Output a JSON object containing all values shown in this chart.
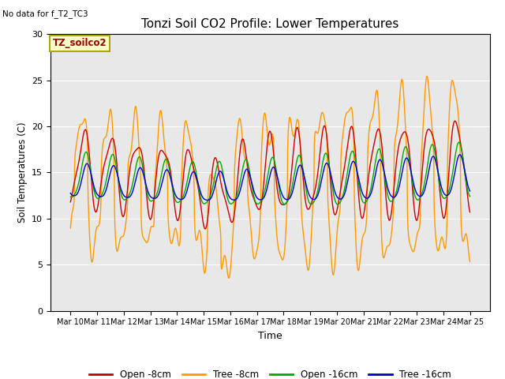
{
  "title": "Tonzi Soil CO2 Profile: Lower Temperatures",
  "note": "No data for f_T2_TC3",
  "legend_box_label": "TZ_soilco2",
  "xlabel": "Time",
  "ylabel": "Soil Temperatures (C)",
  "ylim": [
    0,
    30
  ],
  "yticks": [
    0,
    5,
    10,
    15,
    20,
    25,
    30
  ],
  "colors": {
    "open_8cm": "#cc0000",
    "tree_8cm": "#ff9900",
    "open_16cm": "#00aa00",
    "tree_16cm": "#0000cc"
  },
  "legend_labels": [
    "Open -8cm",
    "Tree -8cm",
    "Open -16cm",
    "Tree -16cm"
  ],
  "bg_color": "#e8e8e8",
  "fig_bg": "#ffffff"
}
